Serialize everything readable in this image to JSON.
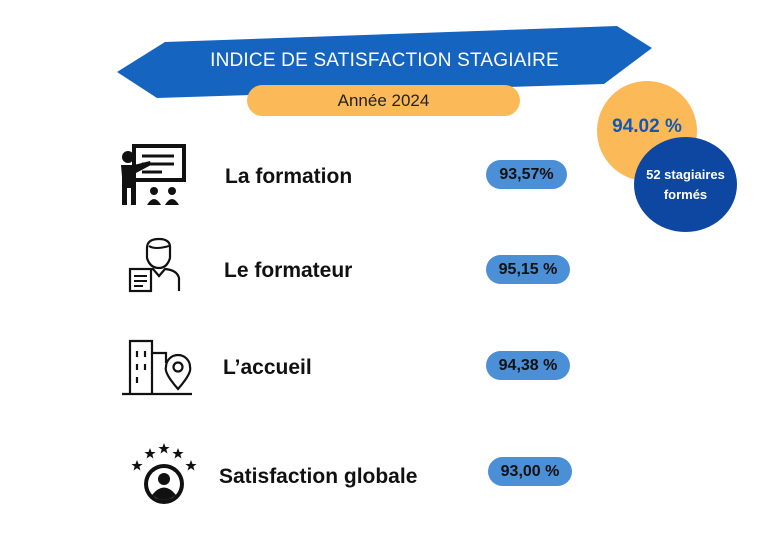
{
  "header": {
    "title": "INDICE DE SATISFACTION STAGIAIRE",
    "year": "Année 2024"
  },
  "summary": {
    "overall_score": "94.02 %",
    "trainees": "52 stagiaires formés"
  },
  "rows": [
    {
      "label": "La formation",
      "score": "93,57%",
      "icon": "trainer-presentation-icon"
    },
    {
      "label": "Le formateur",
      "score": "95,15 %",
      "icon": "trainer-person-icon"
    },
    {
      "label": "L’accueil",
      "score": "94,38 %",
      "icon": "building-location-icon"
    },
    {
      "label": "Satisfaction globale",
      "score": "93,00 %",
      "icon": "user-stars-icon"
    }
  ],
  "colors": {
    "banner": "#1565c0",
    "accent_orange": "#fbb957",
    "score_pill": "#4b8fd6",
    "dark_blue": "#0d47a1"
  }
}
